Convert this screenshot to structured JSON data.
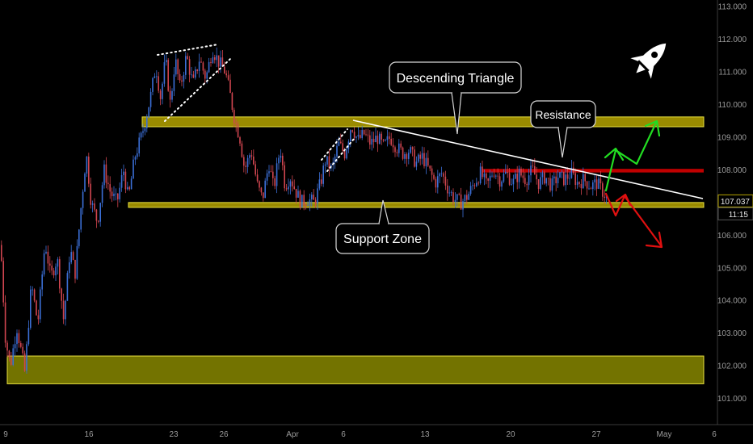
{
  "chart_data": {
    "type": "candlestick",
    "y_axis": {
      "range": [
        100.2,
        113.2
      ],
      "ticks": [
        "113.000",
        "112.000",
        "111.000",
        "110.000",
        "109.000",
        "108.000",
        "107.000",
        "106.000",
        "105.000",
        "104.000",
        "103.000",
        "102.000",
        "101.000"
      ],
      "tick_values": [
        113,
        112,
        111,
        110,
        109,
        108,
        107,
        106,
        105,
        104,
        103,
        102,
        101
      ],
      "position": "right"
    },
    "x_axis": {
      "ticks": [
        "9",
        "16",
        "23",
        "26",
        "Apr",
        "6",
        "13",
        "20",
        "27",
        "May",
        "6"
      ]
    },
    "last_price": "107.037",
    "countdown": "11:15",
    "price_path": [
      [
        0,
        105.7
      ],
      [
        6,
        102.8
      ],
      [
        12,
        102.0
      ],
      [
        20,
        103.2
      ],
      [
        30,
        101.8
      ],
      [
        38,
        104.5
      ],
      [
        46,
        103.3
      ],
      [
        55,
        105.8
      ],
      [
        62,
        104.7
      ],
      [
        70,
        105.3
      ],
      [
        78,
        103.4
      ],
      [
        86,
        105.6
      ],
      [
        92,
        104.8
      ],
      [
        100,
        107.0
      ],
      [
        106,
        108.5
      ],
      [
        112,
        107.0
      ],
      [
        120,
        106.4
      ],
      [
        128,
        108.0
      ],
      [
        136,
        107.3
      ],
      [
        144,
        107.0
      ],
      [
        152,
        108.0
      ],
      [
        158,
        107.1
      ],
      [
        166,
        108.4
      ],
      [
        174,
        109.0
      ],
      [
        180,
        109.6
      ],
      [
        186,
        110.3
      ],
      [
        192,
        111.2
      ],
      [
        198,
        110.2
      ],
      [
        204,
        111.4
      ],
      [
        210,
        110.0
      ],
      [
        216,
        111.4
      ],
      [
        222,
        110.5
      ],
      [
        230,
        111.5
      ],
      [
        238,
        110.6
      ],
      [
        246,
        111.4
      ],
      [
        254,
        110.8
      ],
      [
        262,
        111.7
      ],
      [
        270,
        111.3
      ],
      [
        278,
        111.0
      ],
      [
        284,
        110.3
      ],
      [
        290,
        109.5
      ],
      [
        296,
        109.0
      ],
      [
        302,
        108.0
      ],
      [
        310,
        108.6
      ],
      [
        318,
        107.5
      ],
      [
        324,
        107.1
      ],
      [
        332,
        108.2
      ],
      [
        338,
        107.4
      ],
      [
        346,
        108.7
      ],
      [
        352,
        107.5
      ],
      [
        358,
        107.8
      ],
      [
        366,
        107.3
      ],
      [
        372,
        107.0
      ],
      [
        380,
        107.1
      ],
      [
        388,
        107.0
      ],
      [
        396,
        107.6
      ],
      [
        402,
        108.3
      ],
      [
        410,
        108.0
      ],
      [
        418,
        108.8
      ],
      [
        426,
        108.5
      ],
      [
        434,
        109.4
      ],
      [
        442,
        108.9
      ],
      [
        450,
        109.1
      ],
      [
        458,
        108.8
      ],
      [
        466,
        109.0
      ],
      [
        474,
        108.7
      ],
      [
        482,
        109.0
      ],
      [
        490,
        108.7
      ],
      [
        498,
        108.5
      ],
      [
        506,
        108.6
      ],
      [
        514,
        108.2
      ],
      [
        522,
        108.4
      ],
      [
        530,
        108.0
      ],
      [
        538,
        107.6
      ],
      [
        546,
        107.9
      ],
      [
        554,
        107.4
      ],
      [
        562,
        107.1
      ],
      [
        570,
        107.0
      ],
      [
        578,
        107.2
      ],
      [
        586,
        107.6
      ],
      [
        594,
        107.9
      ],
      [
        602,
        107.5
      ],
      [
        610,
        108.0
      ],
      [
        618,
        107.7
      ],
      [
        626,
        107.9
      ],
      [
        634,
        107.6
      ],
      [
        642,
        107.9
      ],
      [
        650,
        107.7
      ],
      [
        658,
        108.0
      ],
      [
        666,
        107.6
      ],
      [
        674,
        107.8
      ],
      [
        682,
        107.5
      ],
      [
        690,
        107.8
      ],
      [
        698,
        107.7
      ],
      [
        706,
        107.9
      ],
      [
        714,
        107.6
      ],
      [
        722,
        107.7
      ],
      [
        730,
        107.5
      ],
      [
        738,
        107.6
      ],
      [
        746,
        107.3
      ],
      [
        752,
        107.1
      ]
    ]
  },
  "zones": {
    "resistance_top": {
      "top": 109.62,
      "bottom": 109.32,
      "color": "#b5a300"
    },
    "support": {
      "top": 107.0,
      "bottom": 106.85,
      "color": "#b5a300"
    },
    "lower_support": {
      "top": 102.3,
      "bottom": 101.45,
      "color": "#808000"
    },
    "resistance_red": {
      "top": 108.03,
      "bottom": 107.92,
      "color": "#d40000"
    }
  },
  "callouts": {
    "descending_triangle": "Descending Triangle",
    "resistance": "Resistance",
    "support_zone": "Support Zone"
  },
  "colors": {
    "bull": "#3b6fd6",
    "bear": "#d0454f",
    "trendline": "#ffffff",
    "up_arrow": "#22dd22",
    "down_arrow": "#e01010"
  },
  "icons": {
    "corner": "rocket-icon"
  }
}
